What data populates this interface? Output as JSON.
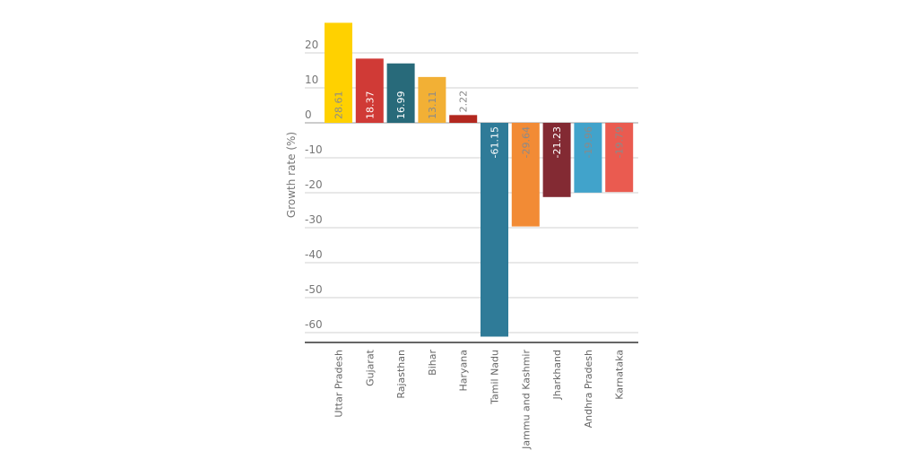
{
  "chart_data": {
    "type": "bar",
    "title": "",
    "xlabel": "",
    "ylabel": "Growth rate (%)",
    "ylim": [
      -62,
      29
    ],
    "yticks": [
      20,
      10,
      0,
      -10,
      -20,
      -30,
      -40,
      -50,
      -60
    ],
    "grid": true,
    "legend": "none",
    "categories": [
      "Uttar Pradesh",
      "Gujarat",
      "Rajasthan",
      "Bihar",
      "Haryana",
      "Tamil Nadu",
      "Jammu and Kashmir",
      "Jharkhand",
      "Andhra Pradesh",
      "Karnataka"
    ],
    "values": [
      28.61,
      18.37,
      16.99,
      13.11,
      2.22,
      -61.15,
      -29.64,
      -21.23,
      -19.96,
      -19.79
    ],
    "data_labels": [
      "28.61",
      "18.37",
      "16.99",
      "13.11",
      "2.22",
      "-61.15",
      "-29.64",
      "-21.23",
      "-19.96",
      "-19.79"
    ],
    "colors": [
      "#ffd100",
      "#d03a36",
      "#286a7a",
      "#f2b035",
      "#b3281f",
      "#2f7b98",
      "#f28b35",
      "#832a33",
      "#41a3cb",
      "#ea5b50"
    ],
    "label_colors": [
      "#8a8a8a",
      "#ffffff",
      "#ffffff",
      "#8a8a8a",
      "#8a8a8a",
      "#ffffff",
      "#8a8a8a",
      "#ffffff",
      "#8a8a8a",
      "#8a8a8a"
    ]
  }
}
